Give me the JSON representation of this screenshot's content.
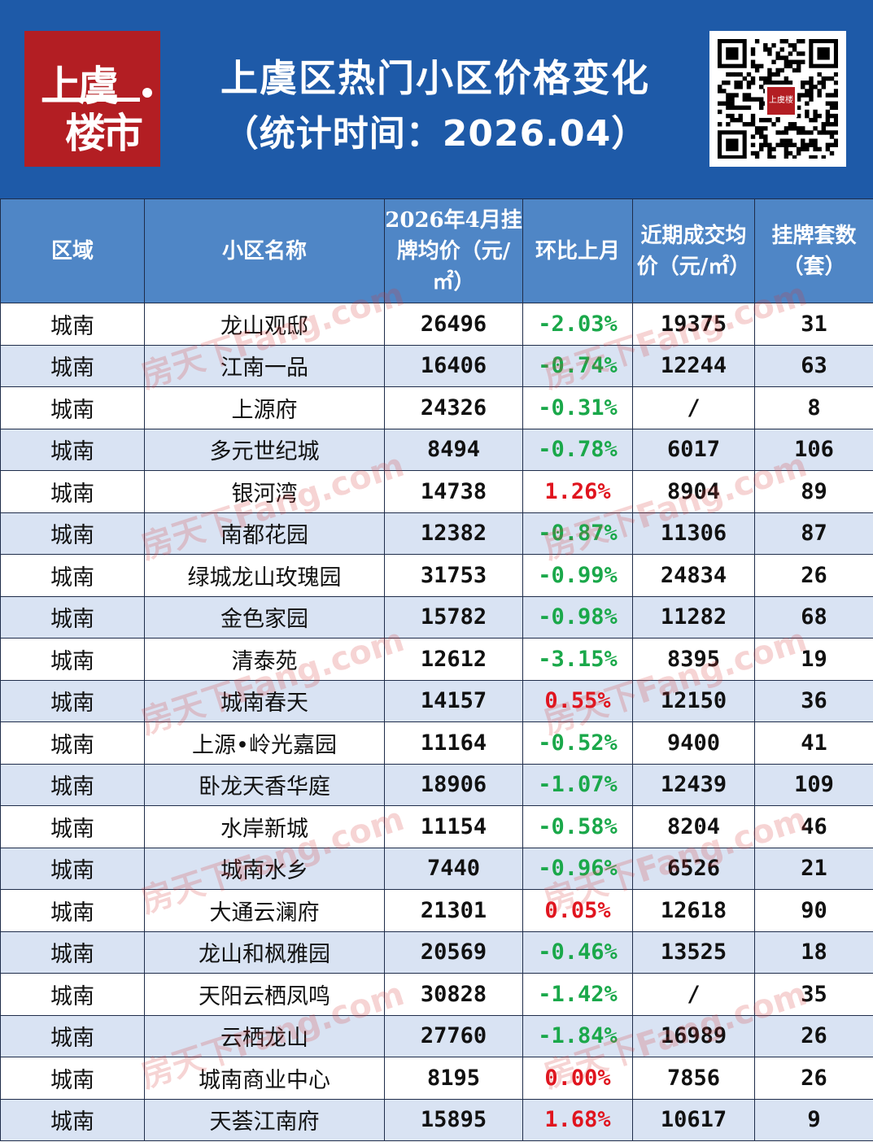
{
  "header": {
    "logo_line1": "上虞",
    "logo_line2": "楼市",
    "title": "上虞区热门小区价格变化",
    "subtitle": "（统计时间：2026.04）",
    "qr_logo": "上虞楼市"
  },
  "watermark": "房天下Fang.com",
  "colors": {
    "header_bg": "#1e5aa8",
    "logo_bg": "#b31e23",
    "table_head": "#4f86c6",
    "row_alt": "#d9e3f3",
    "down": "#1aa84a",
    "up": "#e0141e"
  },
  "table": {
    "headers": [
      "区域",
      "小区名称",
      "2026年4月挂牌均价（元/㎡）",
      "环比上月",
      "近期成交均价（元/㎡）",
      "挂牌套数（套）"
    ],
    "rows": [
      [
        "城南",
        "龙山观邸",
        "26496",
        "-2.03%",
        "19375",
        "31"
      ],
      [
        "城南",
        "江南一品",
        "16406",
        "-0.74%",
        "12244",
        "63"
      ],
      [
        "城南",
        "上源府",
        "24326",
        "-0.31%",
        "/",
        "8"
      ],
      [
        "城南",
        "多元世纪城",
        "8494",
        "-0.78%",
        "6017",
        "106"
      ],
      [
        "城南",
        "银河湾",
        "14738",
        "1.26%",
        "8904",
        "89"
      ],
      [
        "城南",
        "南都花园",
        "12382",
        "-0.87%",
        "11306",
        "87"
      ],
      [
        "城南",
        "绿城龙山玫瑰园",
        "31753",
        "-0.99%",
        "24834",
        "26"
      ],
      [
        "城南",
        "金色家园",
        "15782",
        "-0.98%",
        "11282",
        "68"
      ],
      [
        "城南",
        "清泰苑",
        "12612",
        "-3.15%",
        "8395",
        "19"
      ],
      [
        "城南",
        "城南春天",
        "14157",
        "0.55%",
        "12150",
        "36"
      ],
      [
        "城南",
        "上源•岭光嘉园",
        "11164",
        "-0.52%",
        "9400",
        "41"
      ],
      [
        "城南",
        "卧龙天香华庭",
        "18906",
        "-1.07%",
        "12439",
        "109"
      ],
      [
        "城南",
        "水岸新城",
        "11154",
        "-0.58%",
        "8204",
        "46"
      ],
      [
        "城南",
        "城南水乡",
        "7440",
        "-0.96%",
        "6526",
        "21"
      ],
      [
        "城南",
        "大通云澜府",
        "21301",
        "0.05%",
        "12618",
        "90"
      ],
      [
        "城南",
        "龙山和枫雅园",
        "20569",
        "-0.46%",
        "13525",
        "18"
      ],
      [
        "城南",
        "天阳云栖凤鸣",
        "30828",
        "-1.42%",
        "/",
        "35"
      ],
      [
        "城南",
        "云栖龙山",
        "27760",
        "-1.84%",
        "16989",
        "26"
      ],
      [
        "城南",
        "城南商业中心",
        "8195",
        "0.00%",
        "7856",
        "26"
      ],
      [
        "城南",
        "天荟江南府",
        "15895",
        "1.68%",
        "10617",
        "9"
      ]
    ]
  }
}
